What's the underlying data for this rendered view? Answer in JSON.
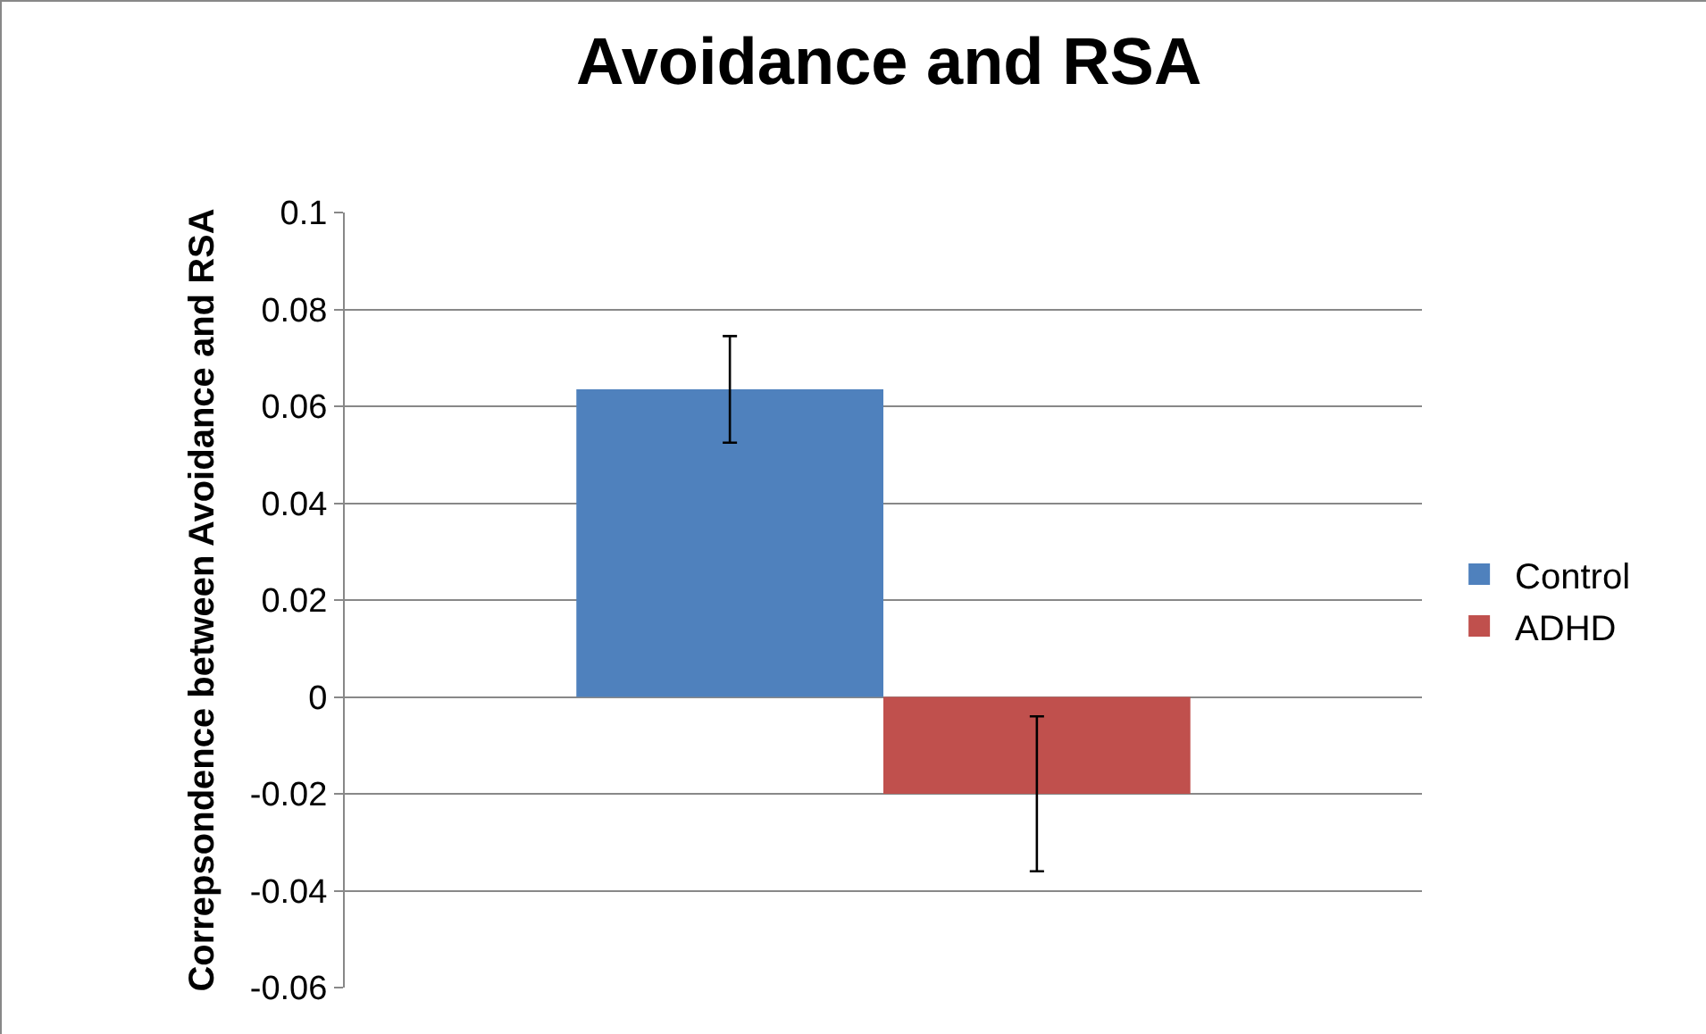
{
  "chart_data": {
    "type": "bar",
    "title": "Avoidance and RSA",
    "ylabel": "Correpsondence between Avoidance and RSA",
    "categories": [
      null
    ],
    "series": [
      {
        "name": "Control",
        "color": "#4f81bd",
        "values": [
          0.0635
        ],
        "errors": [
          0.011
        ]
      },
      {
        "name": "ADHD",
        "color": "#c0504d",
        "values": [
          -0.02
        ],
        "errors": [
          0.016
        ]
      }
    ],
    "ylim": [
      -0.06,
      0.1
    ],
    "yticks": [
      -0.06,
      -0.04,
      -0.02,
      0,
      0.02,
      0.04,
      0.06,
      0.08,
      0.1
    ],
    "grid": "y",
    "legend": "right"
  }
}
